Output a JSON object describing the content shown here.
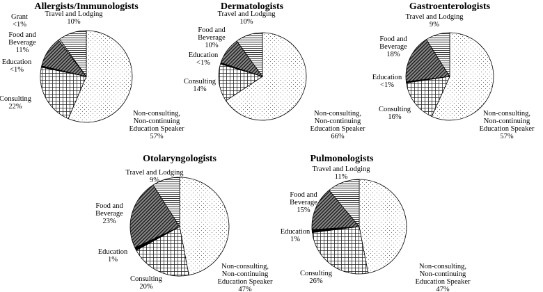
{
  "chart_data": [
    {
      "type": "pie",
      "title": "Allergists/Immunologists",
      "slices": [
        {
          "key": "speaker",
          "name": "Non-consulting, Non-continuing Education Speaker",
          "value": 57,
          "display": "57%"
        },
        {
          "key": "consulting",
          "name": "Consulting",
          "value": 22,
          "display": "22%"
        },
        {
          "key": "education",
          "name": "Education",
          "value": 0.5,
          "display": "<1%"
        },
        {
          "key": "food",
          "name": "Food and Beverage",
          "value": 11,
          "display": "11%"
        },
        {
          "key": "grant",
          "name": "Grant",
          "value": 0.5,
          "display": "<1%"
        },
        {
          "key": "travel",
          "name": "Travel and Lodging",
          "value": 10,
          "display": "10%"
        }
      ]
    },
    {
      "type": "pie",
      "title": "Dermatologists",
      "slices": [
        {
          "key": "speaker",
          "name": "Non-consulting, Non-continuing Education Speaker",
          "value": 66,
          "display": "66%"
        },
        {
          "key": "consulting",
          "name": "Consulting",
          "value": 14,
          "display": "14%"
        },
        {
          "key": "education",
          "name": "Education",
          "value": 0.5,
          "display": "<1%"
        },
        {
          "key": "food",
          "name": "Food and Beverage",
          "value": 10,
          "display": "10%"
        },
        {
          "key": "travel",
          "name": "Travel and Lodging",
          "value": 10,
          "display": "10%"
        }
      ]
    },
    {
      "type": "pie",
      "title": "Gastroenterologists",
      "slices": [
        {
          "key": "speaker",
          "name": "Non-consulting, Non-continuing Education Speaker",
          "value": 57,
          "display": "57%"
        },
        {
          "key": "consulting",
          "name": "Consulting",
          "value": 16,
          "display": "16%"
        },
        {
          "key": "education",
          "name": "Education",
          "value": 0.5,
          "display": "<1%"
        },
        {
          "key": "food",
          "name": "Food and Beverage",
          "value": 18,
          "display": "18%"
        },
        {
          "key": "travel",
          "name": "Travel and Lodging",
          "value": 9,
          "display": "9%"
        }
      ]
    },
    {
      "type": "pie",
      "title": "Otolaryngologists",
      "slices": [
        {
          "key": "speaker",
          "name": "Non-consulting, Non-continuing Education Speaker",
          "value": 47,
          "display": "47%"
        },
        {
          "key": "consulting",
          "name": "Consulting",
          "value": 20,
          "display": "20%"
        },
        {
          "key": "education",
          "name": "Education",
          "value": 1,
          "display": "1%"
        },
        {
          "key": "food",
          "name": "Food and Beverage",
          "value": 23,
          "display": "23%"
        },
        {
          "key": "travel",
          "name": "Travel and Lodging",
          "value": 9,
          "display": "9%"
        }
      ]
    },
    {
      "type": "pie",
      "title": "Pulmonologists",
      "slices": [
        {
          "key": "speaker",
          "name": "Non-consulting, Non-continuing Education Speaker",
          "value": 47,
          "display": "47%"
        },
        {
          "key": "consulting",
          "name": "Consulting",
          "value": 26,
          "display": "26%"
        },
        {
          "key": "education",
          "name": "Education",
          "value": 1,
          "display": "1%"
        },
        {
          "key": "food",
          "name": "Food and Beverage",
          "value": 15,
          "display": "15%"
        },
        {
          "key": "travel",
          "name": "Travel and Lodging",
          "value": 11,
          "display": "11%"
        }
      ]
    }
  ]
}
